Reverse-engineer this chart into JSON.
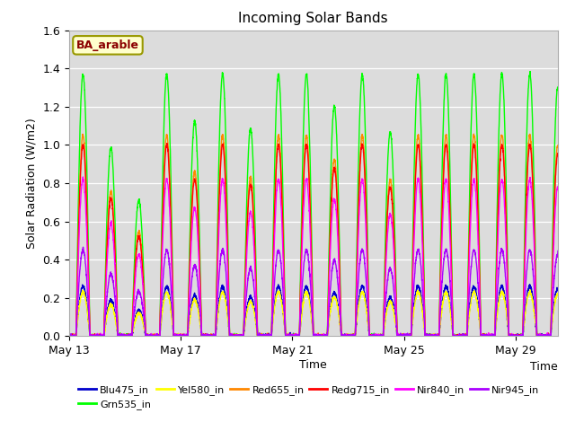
{
  "title": "Incoming Solar Bands",
  "xlabel": "Time",
  "ylabel": "Solar Radiation (W/m2)",
  "ylim": [
    0.0,
    1.6
  ],
  "yticks": [
    0.0,
    0.2,
    0.4,
    0.6,
    0.8,
    1.0,
    1.2,
    1.4,
    1.6
  ],
  "annotation": "BA_arable",
  "bands": [
    {
      "name": "Blu475_in",
      "color": "#0000cc"
    },
    {
      "name": "Grn535_in",
      "color": "#00ff00"
    },
    {
      "name": "Yel580_in",
      "color": "#ffff00"
    },
    {
      "name": "Red655_in",
      "color": "#ff8800"
    },
    {
      "name": "Redg715_in",
      "color": "#ff0000"
    },
    {
      "name": "Nir840_in",
      "color": "#ff00ff"
    },
    {
      "name": "Nir945_in",
      "color": "#aa00ff"
    }
  ],
  "peak_factors": {
    "Blu475_in": 0.26,
    "Grn535_in": 1.37,
    "Yel580_in": 0.23,
    "Red655_in": 1.05,
    "Redg715_in": 1.0,
    "Nir840_in": 0.82,
    "Nir945_in": 0.45
  },
  "day_cloud_scale": [
    1.0,
    0.72,
    0.52,
    1.0,
    0.82,
    1.0,
    0.79,
    1.0,
    1.0,
    0.88,
    1.0,
    0.78,
    1.0,
    1.0,
    1.0,
    1.0,
    1.0,
    0.95
  ],
  "n_days": 18,
  "ppd": 200,
  "xtick_labels": [
    "May 13",
    "May 17",
    "May 21",
    "May 25",
    "May 29"
  ],
  "xtick_days": [
    0,
    4,
    8,
    12,
    16
  ]
}
